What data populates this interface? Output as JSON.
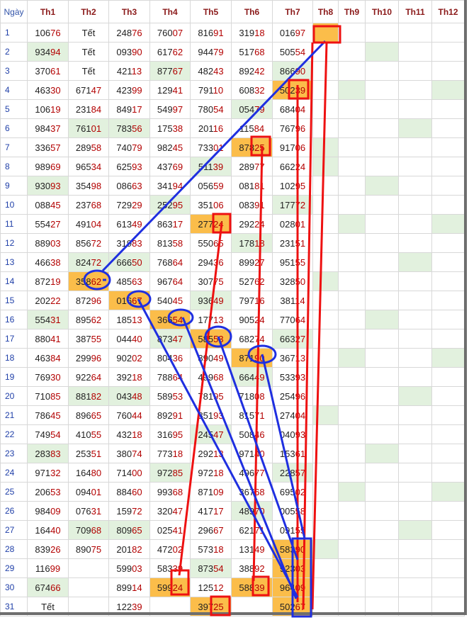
{
  "headers": [
    "Ngày",
    "Th1",
    "Th2",
    "Th3",
    "Th4",
    "Th5",
    "Th6",
    "Th7",
    "Th8",
    "Th9",
    "Th10",
    "Th11",
    "Th12"
  ],
  "rows": [
    {
      "day": "1",
      "vals": [
        "10676",
        "Tết",
        "24876",
        "76007",
        "81691",
        "31918",
        "01697",
        "",
        "",
        "",
        "",
        ""
      ]
    },
    {
      "day": "2",
      "vals": [
        "93494",
        "Tết",
        "09390",
        "61762",
        "94479",
        "51768",
        "50554",
        "",
        "",
        "",
        "",
        ""
      ]
    },
    {
      "day": "3",
      "vals": [
        "37061",
        "Tết",
        "42113",
        "87767",
        "48243",
        "89242",
        "86690",
        "",
        "",
        "",
        "",
        ""
      ]
    },
    {
      "day": "4",
      "vals": [
        "46330",
        "67147",
        "42399",
        "12941",
        "79110",
        "60832",
        "50239",
        "",
        "",
        "",
        "",
        ""
      ]
    },
    {
      "day": "5",
      "vals": [
        "10619",
        "23184",
        "84917",
        "54997",
        "78054",
        "05479",
        "68404",
        "",
        "",
        "",
        "",
        ""
      ]
    },
    {
      "day": "6",
      "vals": [
        "98437",
        "76101",
        "78356",
        "17538",
        "20116",
        "11584",
        "76796",
        "",
        "",
        "",
        "",
        ""
      ]
    },
    {
      "day": "7",
      "vals": [
        "33657",
        "28958",
        "74079",
        "98245",
        "73301",
        "87825",
        "91706",
        "",
        "",
        "",
        "",
        ""
      ]
    },
    {
      "day": "8",
      "vals": [
        "98969",
        "96534",
        "62593",
        "43769",
        "51139",
        "28977",
        "66224",
        "",
        "",
        "",
        "",
        ""
      ]
    },
    {
      "day": "9",
      "vals": [
        "93093",
        "35498",
        "08663",
        "34194",
        "05659",
        "08181",
        "10295",
        "",
        "",
        "",
        "",
        ""
      ]
    },
    {
      "day": "10",
      "vals": [
        "08845",
        "23768",
        "72929",
        "25295",
        "35106",
        "08391",
        "17772",
        "",
        "",
        "",
        "",
        ""
      ]
    },
    {
      "day": "11",
      "vals": [
        "55427",
        "49104",
        "61349",
        "86317",
        "27724",
        "29224",
        "02801",
        "",
        "",
        "",
        "",
        ""
      ]
    },
    {
      "day": "12",
      "vals": [
        "88903",
        "85672",
        "31983",
        "81358",
        "55065",
        "17818",
        "23151",
        "",
        "",
        "",
        "",
        ""
      ]
    },
    {
      "day": "13",
      "vals": [
        "46638",
        "82472",
        "66650",
        "76864",
        "29436",
        "89927",
        "95155",
        "",
        "",
        "",
        "",
        ""
      ]
    },
    {
      "day": "14",
      "vals": [
        "87219",
        "35862",
        "48563",
        "96764",
        "30775",
        "52762",
        "32850",
        "",
        "",
        "",
        "",
        ""
      ]
    },
    {
      "day": "15",
      "vals": [
        "20222",
        "87296",
        "01667",
        "54045",
        "93649",
        "79716",
        "38114",
        "",
        "",
        "",
        "",
        ""
      ]
    },
    {
      "day": "16",
      "vals": [
        "55431",
        "89562",
        "18513",
        "36654",
        "17713",
        "90524",
        "77064",
        "",
        "",
        "",
        "",
        ""
      ]
    },
    {
      "day": "17",
      "vals": [
        "88041",
        "38755",
        "04440",
        "87347",
        "58553",
        "68274",
        "66327",
        "",
        "",
        "",
        "",
        ""
      ]
    },
    {
      "day": "18",
      "vals": [
        "46384",
        "29996",
        "90202",
        "80436",
        "89049",
        "87190",
        "36713",
        "",
        "",
        "",
        "",
        ""
      ]
    },
    {
      "day": "19",
      "vals": [
        "76930",
        "92264",
        "39218",
        "78864",
        "49968",
        "66449",
        "53393",
        "",
        "",
        "",
        "",
        ""
      ]
    },
    {
      "day": "20",
      "vals": [
        "71085",
        "88182",
        "04348",
        "58953",
        "78195",
        "71808",
        "25496",
        "",
        "",
        "",
        "",
        ""
      ]
    },
    {
      "day": "21",
      "vals": [
        "78645",
        "89665",
        "76044",
        "89291",
        "85193",
        "81571",
        "27404",
        "",
        "",
        "",
        "",
        ""
      ]
    },
    {
      "day": "22",
      "vals": [
        "74954",
        "41055",
        "43218",
        "31695",
        "24547",
        "50846",
        "04093",
        "",
        "",
        "",
        "",
        ""
      ]
    },
    {
      "day": "23",
      "vals": [
        "28383",
        "25351",
        "38074",
        "77318",
        "29213",
        "97140",
        "15361",
        "",
        "",
        "",
        "",
        ""
      ]
    },
    {
      "day": "24",
      "vals": [
        "97132",
        "16480",
        "71400",
        "97285",
        "97218",
        "49677",
        "22857",
        "",
        "",
        "",
        "",
        ""
      ]
    },
    {
      "day": "25",
      "vals": [
        "20653",
        "09401",
        "88460",
        "99368",
        "87109",
        "36768",
        "69502",
        "",
        "",
        "",
        "",
        ""
      ]
    },
    {
      "day": "26",
      "vals": [
        "98409",
        "07631",
        "15972",
        "32047",
        "41717",
        "48970",
        "00558",
        "",
        "",
        "",
        "",
        ""
      ]
    },
    {
      "day": "27",
      "vals": [
        "16440",
        "70968",
        "80965",
        "02541",
        "29667",
        "62171",
        "09155",
        "",
        "",
        "",
        "",
        ""
      ]
    },
    {
      "day": "28",
      "vals": [
        "83926",
        "89075",
        "20182",
        "47202",
        "57318",
        "13149",
        "58390",
        "",
        "",
        "",
        "",
        ""
      ]
    },
    {
      "day": "29",
      "vals": [
        "11699",
        "",
        "59903",
        "58339",
        "87354",
        "38892",
        "92303",
        "",
        "",
        "",
        "",
        ""
      ]
    },
    {
      "day": "30",
      "vals": [
        "67466",
        "",
        "89914",
        "59924",
        "12512",
        "58839",
        "96409",
        "",
        "",
        "",
        "",
        ""
      ]
    },
    {
      "day": "31",
      "vals": [
        "Tết",
        "",
        "12239",
        "",
        "39725",
        "",
        "50267",
        "",
        "",
        "",
        "",
        ""
      ]
    }
  ],
  "green_cells": [
    [
      2,
      1
    ],
    [
      2,
      10
    ],
    [
      3,
      4
    ],
    [
      3,
      7
    ],
    [
      4,
      9
    ],
    [
      4,
      12
    ],
    [
      5,
      6
    ],
    [
      6,
      2
    ],
    [
      6,
      3
    ],
    [
      6,
      11
    ],
    [
      7,
      8
    ],
    [
      8,
      5
    ],
    [
      8,
      8
    ],
    [
      9,
      1
    ],
    [
      9,
      10
    ],
    [
      10,
      4
    ],
    [
      10,
      7
    ],
    [
      11,
      9
    ],
    [
      11,
      12
    ],
    [
      12,
      6
    ],
    [
      13,
      2
    ],
    [
      13,
      3
    ],
    [
      13,
      11
    ],
    [
      14,
      8
    ],
    [
      15,
      5
    ],
    [
      16,
      1
    ],
    [
      16,
      10
    ],
    [
      17,
      4
    ],
    [
      17,
      7
    ],
    [
      18,
      9
    ],
    [
      18,
      12
    ],
    [
      19,
      6
    ],
    [
      20,
      2
    ],
    [
      20,
      3
    ],
    [
      20,
      11
    ],
    [
      21,
      8
    ],
    [
      22,
      5
    ],
    [
      23,
      1
    ],
    [
      23,
      10
    ],
    [
      24,
      4
    ],
    [
      24,
      7
    ],
    [
      25,
      9
    ],
    [
      25,
      12
    ],
    [
      26,
      6
    ],
    [
      27,
      2
    ],
    [
      27,
      3
    ],
    [
      27,
      11
    ],
    [
      28,
      8
    ],
    [
      29,
      5
    ],
    [
      30,
      1
    ]
  ],
  "orange_cells": [
    [
      1,
      8
    ],
    [
      4,
      7
    ],
    [
      7,
      6
    ],
    [
      11,
      5
    ],
    [
      14,
      2
    ],
    [
      15,
      3
    ],
    [
      16,
      4
    ],
    [
      17,
      5
    ],
    [
      18,
      6
    ],
    [
      28,
      7
    ],
    [
      29,
      7
    ],
    [
      30,
      4
    ],
    [
      30,
      6
    ],
    [
      30,
      7
    ],
    [
      31,
      5
    ],
    [
      31,
      7
    ]
  ],
  "colors": {
    "green": "#e2f1de",
    "orange": "#fbbd4a",
    "red_marker": "#ee1111",
    "blue_marker": "#1f2fe0",
    "header_text": "#8b1a1a",
    "day_text": "#1f3fa8"
  }
}
